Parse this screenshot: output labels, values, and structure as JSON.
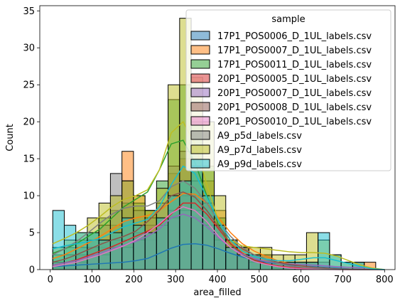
{
  "chart_data": {
    "type": "bar",
    "xlabel": "area_filled",
    "ylabel": "Count",
    "xlim": [
      -25,
      825
    ],
    "ylim": [
      0,
      35.7
    ],
    "xticks": [
      0,
      100,
      200,
      300,
      400,
      500,
      600,
      700,
      800
    ],
    "yticks": [
      0,
      5,
      10,
      15,
      20,
      25,
      30,
      35
    ],
    "bin_width": 27.6,
    "bin_start": 6,
    "legend_title": "sample",
    "legend_position": "upper right",
    "series": [
      {
        "name": "17P1_POS0006_D_1UL_labels.csv",
        "color": "#1f77b4",
        "counts": [
          0,
          0,
          1,
          1,
          1,
          0,
          1,
          0,
          1,
          1,
          2,
          3,
          3,
          4,
          3,
          2,
          1,
          1,
          1,
          0,
          0,
          0,
          0,
          0,
          0,
          0,
          0,
          0
        ],
        "kde": [
          0.4,
          0.5,
          0.6,
          0.7,
          0.8,
          0.9,
          1.0,
          1.2,
          1.5,
          2.2,
          2.9,
          3.4,
          3.5,
          3.3,
          2.8,
          2.2,
          1.7,
          1.3,
          1.0,
          0.8,
          0.6,
          0.5,
          0.4,
          0.3,
          0.2,
          0.1,
          0.05,
          0.02,
          0.0
        ]
      },
      {
        "name": "17P1_POS0007_D_1UL_labels.csv",
        "color": "#ff7f0e",
        "counts": [
          1,
          1,
          2,
          3,
          3,
          6,
          16,
          10,
          8,
          7,
          13,
          15,
          15,
          12,
          8,
          4,
          3,
          2,
          2,
          1,
          1,
          1,
          0,
          0,
          0,
          0,
          0,
          1
        ],
        "kde": [
          1.5,
          2.0,
          2.8,
          3.6,
          4.5,
          5.5,
          6.5,
          7.0,
          7.3,
          8.0,
          9.2,
          10.3,
          10.2,
          9.0,
          7.0,
          5.0,
          3.5,
          2.5,
          1.8,
          1.2,
          0.8,
          0.5,
          0.3,
          0.2,
          0.1,
          0.05,
          0.03,
          0.05,
          0.0
        ]
      },
      {
        "name": "17P1_POS0011_D_1UL_labels.csv",
        "color": "#2ca02c",
        "counts": [
          2,
          3,
          4,
          5,
          7,
          8,
          9,
          9,
          8,
          12,
          23,
          25,
          20,
          14,
          7,
          4,
          2,
          1,
          1,
          1,
          0,
          0,
          0,
          0,
          0,
          0,
          0,
          0
        ],
        "kde": [
          2.2,
          2.8,
          3.5,
          4.5,
          5.5,
          7.0,
          8.5,
          9.5,
          10.5,
          13.5,
          17.0,
          17.5,
          14.5,
          10.0,
          6.0,
          3.5,
          2.0,
          1.2,
          0.7,
          0.4,
          0.3,
          0.2,
          0.1,
          0.05,
          0.02,
          0.01,
          0.0,
          0.0,
          0.0
        ]
      },
      {
        "name": "20P1_POS0005_D_1UL_labels.csv",
        "color": "#d62728",
        "counts": [
          0,
          1,
          1,
          2,
          2,
          3,
          4,
          5,
          5,
          6,
          7,
          8,
          8,
          7,
          5,
          3,
          2,
          1,
          1,
          0,
          0,
          0,
          0,
          0,
          0,
          0,
          0,
          0
        ],
        "kde": [
          0.6,
          0.9,
          1.3,
          1.9,
          2.5,
          3.1,
          3.8,
          4.5,
          5.2,
          6.0,
          7.5,
          9.0,
          9.0,
          7.5,
          5.5,
          3.5,
          2.2,
          1.3,
          0.8,
          0.5,
          0.3,
          0.2,
          0.1,
          0.05,
          0.02,
          0.0,
          0.0,
          0.0,
          0.0
        ]
      },
      {
        "name": "20P1_POS0007_D_1UL_labels.csv",
        "color": "#9467bd",
        "counts": [
          0,
          1,
          1,
          2,
          2,
          3,
          3,
          4,
          4,
          6,
          8,
          8,
          7,
          6,
          4,
          3,
          2,
          2,
          1,
          1,
          1,
          1,
          1,
          1,
          0,
          0,
          1,
          0
        ],
        "kde": [
          0.6,
          0.9,
          1.2,
          1.7,
          2.2,
          2.8,
          3.3,
          3.8,
          4.5,
          5.5,
          7.0,
          7.5,
          7.0,
          5.8,
          4.3,
          3.0,
          2.1,
          1.5,
          1.1,
          0.9,
          0.8,
          0.7,
          0.6,
          0.5,
          0.4,
          0.3,
          0.25,
          0.15,
          0.0
        ]
      },
      {
        "name": "20P1_POS0008_D_1UL_labels.csv",
        "color": "#8c564b",
        "counts": [
          1,
          1,
          2,
          3,
          4,
          4,
          4,
          5,
          6,
          6,
          8,
          10,
          10,
          9,
          6,
          4,
          3,
          2,
          2,
          1,
          1,
          1,
          1,
          0,
          0,
          0,
          0,
          0
        ],
        "kde": [
          1.0,
          1.4,
          2.0,
          2.7,
          3.4,
          4.0,
          4.5,
          5.2,
          6.5,
          8.0,
          10.0,
          10.5,
          9.8,
          8.0,
          5.8,
          4.0,
          2.8,
          2.0,
          1.4,
          1.0,
          0.7,
          0.5,
          0.3,
          0.2,
          0.1,
          0.05,
          0.02,
          0.0,
          0.0
        ]
      },
      {
        "name": "20P1_POS0010_D_1UL_labels.csv",
        "color": "#e377c2",
        "counts": [
          0,
          1,
          1,
          2,
          2,
          3,
          3,
          4,
          5,
          6,
          7,
          8,
          8,
          6,
          4,
          3,
          2,
          1,
          1,
          0,
          0,
          0,
          0,
          0,
          0,
          0,
          0,
          0
        ],
        "kde": [
          0.4,
          0.7,
          1.0,
          1.5,
          2.0,
          2.6,
          3.2,
          4.0,
          5.0,
          6.2,
          7.6,
          8.5,
          8.0,
          6.5,
          4.5,
          3.0,
          1.9,
          1.1,
          0.7,
          0.4,
          0.2,
          0.1,
          0.05,
          0.02,
          0.0,
          0.0,
          0.0,
          0.0,
          0.0
        ]
      },
      {
        "name": "A9_p5d_labels.csv",
        "color": "#7f7f7f",
        "counts": [
          1,
          2,
          3,
          4,
          6,
          13,
          12,
          8,
          7,
          9,
          14,
          16,
          12,
          9,
          6,
          4,
          3,
          2,
          2,
          1,
          1,
          0,
          0,
          0,
          0,
          0,
          0,
          0
        ],
        "kde": [
          2.0,
          2.8,
          3.8,
          5.0,
          6.3,
          7.5,
          8.3,
          8.6,
          8.6,
          9.3,
          11.2,
          12.0,
          11.0,
          9.0,
          6.5,
          4.5,
          3.0,
          2.0,
          1.3,
          0.8,
          0.5,
          0.3,
          0.2,
          0.1,
          0.05,
          0.02,
          0.0,
          0.0,
          0.0
        ]
      },
      {
        "name": "A9_p7d_labels.csv",
        "color": "#bcbd22",
        "counts": [
          3,
          4,
          5,
          7,
          9,
          10,
          12,
          10,
          8,
          11,
          25,
          34,
          26,
          20,
          10,
          4,
          3,
          3,
          3,
          2,
          2,
          2,
          5,
          4,
          2,
          1,
          1,
          0
        ],
        "kde": [
          3.5,
          4.2,
          5.0,
          6.0,
          7.2,
          8.5,
          9.5,
          10.0,
          10.8,
          13.5,
          18.5,
          20.0,
          17.0,
          11.5,
          6.5,
          4.0,
          3.2,
          3.0,
          2.8,
          2.6,
          2.4,
          2.3,
          2.3,
          2.2,
          1.8,
          1.2,
          0.6,
          0.2,
          0.0
        ]
      },
      {
        "name": "A9_p9d_labels.csv",
        "color": "#17becf",
        "counts": [
          8,
          6,
          5,
          5,
          4,
          5,
          7,
          6,
          5,
          7,
          10,
          12,
          14,
          10,
          6,
          3,
          2,
          2,
          1,
          1,
          1,
          1,
          1,
          5,
          2,
          1,
          1,
          0
        ],
        "kde": [
          2.8,
          3.2,
          3.5,
          3.8,
          4.2,
          5.0,
          5.8,
          6.3,
          6.8,
          8.5,
          11.5,
          14.0,
          13.0,
          9.8,
          6.5,
          4.0,
          2.5,
          1.8,
          1.4,
          1.2,
          1.2,
          1.4,
          1.6,
          1.6,
          1.2,
          0.8,
          0.4,
          0.1,
          0.0
        ]
      }
    ]
  }
}
